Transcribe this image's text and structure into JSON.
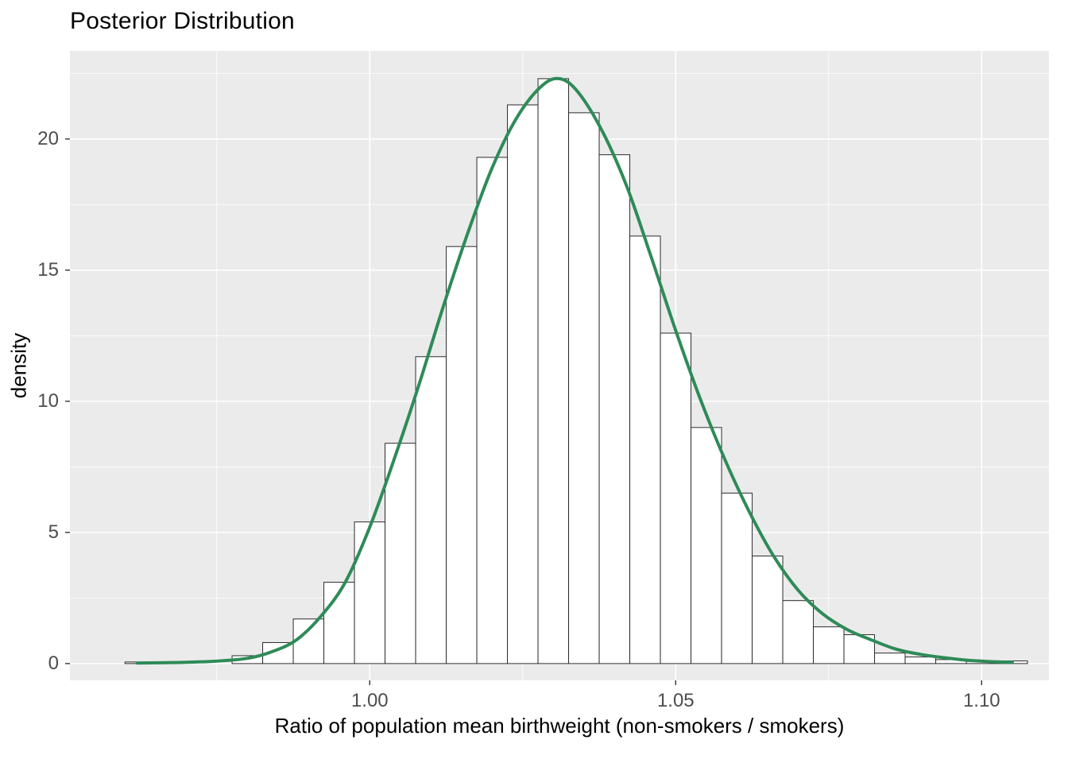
{
  "chart_data": {
    "type": "bar",
    "subtype": "histogram-with-density-overlay",
    "title": "Posterior Distribution",
    "xlabel": "Ratio of population mean birthweight (non-smokers / smokers)",
    "ylabel": "density",
    "xdomain": [
      0.951,
      1.111
    ],
    "ydomain": [
      -0.64,
      23.36
    ],
    "grid": "on",
    "legend": "none",
    "xticks": {
      "values": [
        1.0,
        1.05,
        1.1
      ],
      "labels": [
        "1.00",
        "1.05",
        "1.10"
      ]
    },
    "xminor": [
      0.975,
      1.025,
      1.075
    ],
    "yticks": {
      "values": [
        0,
        5,
        10,
        15,
        20
      ],
      "labels": [
        "0",
        "5",
        "10",
        "15",
        "20"
      ]
    },
    "yminor": [
      2.5,
      7.5,
      12.5,
      17.5,
      22.5
    ],
    "binwidth": 0.005,
    "bars": [
      {
        "x": 0.9625,
        "density": 0.06
      },
      {
        "x": 0.98,
        "density": 0.3
      },
      {
        "x": 0.985,
        "density": 0.8
      },
      {
        "x": 0.99,
        "density": 1.7
      },
      {
        "x": 0.995,
        "density": 3.1
      },
      {
        "x": 1.0,
        "density": 5.4
      },
      {
        "x": 1.005,
        "density": 8.4
      },
      {
        "x": 1.01,
        "density": 11.7
      },
      {
        "x": 1.015,
        "density": 15.9
      },
      {
        "x": 1.02,
        "density": 19.3
      },
      {
        "x": 1.025,
        "density": 21.3
      },
      {
        "x": 1.03,
        "density": 22.3
      },
      {
        "x": 1.035,
        "density": 21.0
      },
      {
        "x": 1.04,
        "density": 19.4
      },
      {
        "x": 1.045,
        "density": 16.3
      },
      {
        "x": 1.05,
        "density": 12.6
      },
      {
        "x": 1.055,
        "density": 9.0
      },
      {
        "x": 1.06,
        "density": 6.5
      },
      {
        "x": 1.065,
        "density": 4.1
      },
      {
        "x": 1.07,
        "density": 2.4
      },
      {
        "x": 1.075,
        "density": 1.4
      },
      {
        "x": 1.08,
        "density": 1.1
      },
      {
        "x": 1.085,
        "density": 0.4
      },
      {
        "x": 1.09,
        "density": 0.25
      },
      {
        "x": 1.095,
        "density": 0.15
      },
      {
        "x": 1.1,
        "density": 0.08
      },
      {
        "x": 1.105,
        "density": 0.1
      }
    ],
    "density_curve": [
      [
        0.962,
        0.02
      ],
      [
        0.968,
        0.04
      ],
      [
        0.974,
        0.08
      ],
      [
        0.98,
        0.2
      ],
      [
        0.984,
        0.45
      ],
      [
        0.988,
        0.9
      ],
      [
        0.992,
        1.8
      ],
      [
        0.996,
        3.1
      ],
      [
        1.0,
        5.2
      ],
      [
        1.004,
        7.8
      ],
      [
        1.008,
        10.6
      ],
      [
        1.012,
        13.6
      ],
      [
        1.016,
        16.4
      ],
      [
        1.02,
        18.9
      ],
      [
        1.024,
        20.8
      ],
      [
        1.028,
        22.0
      ],
      [
        1.031,
        22.3
      ],
      [
        1.034,
        21.8
      ],
      [
        1.038,
        20.3
      ],
      [
        1.042,
        18.2
      ],
      [
        1.046,
        15.5
      ],
      [
        1.05,
        12.7
      ],
      [
        1.054,
        10.1
      ],
      [
        1.058,
        7.8
      ],
      [
        1.062,
        5.8
      ],
      [
        1.066,
        4.1
      ],
      [
        1.07,
        2.8
      ],
      [
        1.074,
        1.9
      ],
      [
        1.078,
        1.3
      ],
      [
        1.082,
        0.9
      ],
      [
        1.086,
        0.55
      ],
      [
        1.09,
        0.35
      ],
      [
        1.094,
        0.22
      ],
      [
        1.098,
        0.12
      ],
      [
        1.102,
        0.07
      ],
      [
        1.105,
        0.05
      ]
    ],
    "colors": {
      "panel": "#EBEBEB",
      "grid": "#FFFFFF",
      "bar_fill": "#FFFFFF",
      "bar_stroke": "#2B2B2B",
      "curve": "#2E8B57",
      "tick_text": "#4D4D4D",
      "axis_text": "#000000",
      "tick_mark": "#333333"
    }
  }
}
